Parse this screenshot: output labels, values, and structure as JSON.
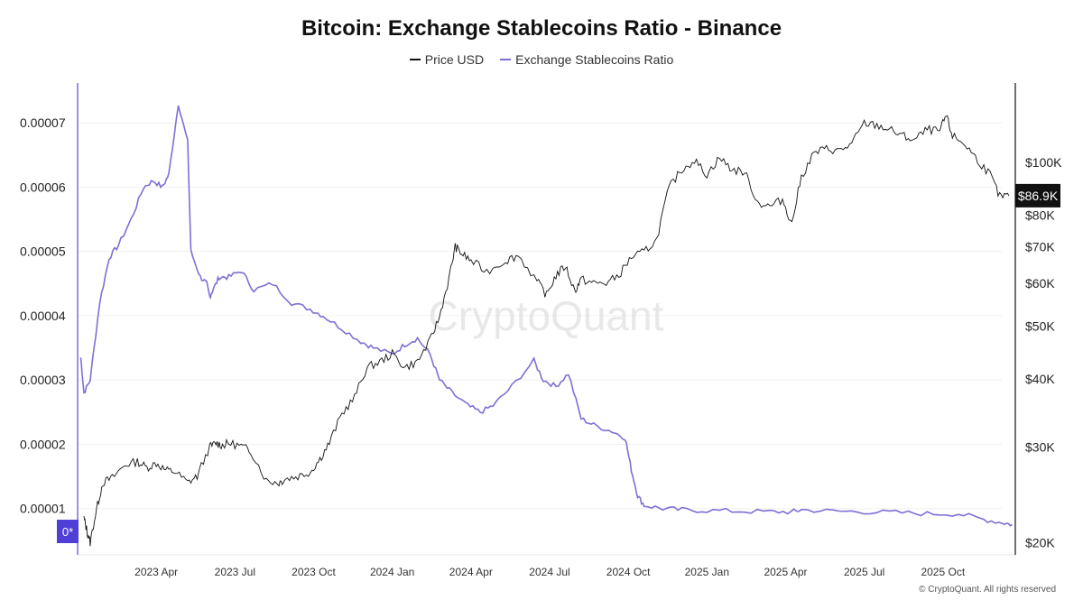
{
  "chart_data": {
    "type": "line",
    "title": "Bitcoin: Exchange Stablecoins Ratio - Binance",
    "watermark": "CryptoQuant",
    "copyright": "© CryptoQuant. All rights reserved",
    "legend": [
      "Price USD",
      "Exchange Stablecoins Ratio"
    ],
    "colors": {
      "price": "#111111",
      "ratio": "#7f6fd6",
      "marker": "#4f3fd6"
    },
    "x_ticks": [
      "2023 Apr",
      "2023 Jul",
      "2023 Oct",
      "2024 Jan",
      "2024 Apr",
      "2024 Jul",
      "2024 Oct",
      "2025 Jan",
      "2025 Apr",
      "2025 Jul",
      "2025 Oct"
    ],
    "x_tick_times": [
      2023.25,
      2023.5,
      2023.75,
      2024.0,
      2024.25,
      2024.5,
      2024.75,
      2025.0,
      2025.25,
      2025.5,
      2025.75
    ],
    "x_range": [
      2023.0,
      2025.98
    ],
    "left_axis": {
      "label": "Exchange Stablecoins Ratio",
      "ticks": [
        "0.00001",
        "0.00002",
        "0.00003",
        "0.00004",
        "0.00005",
        "0.00006",
        "0.00007"
      ],
      "tick_values": [
        1e-05,
        2e-05,
        3e-05,
        4e-05,
        5e-05,
        6e-05,
        7e-05
      ],
      "range": [
        2.8e-06,
        7.62e-05
      ],
      "zero_marker": "0*"
    },
    "right_axis": {
      "label": "Price USD",
      "scale": "log",
      "ticks": [
        "$20K",
        "$30K",
        "$40K",
        "$50K",
        "$60K",
        "$70K",
        "$80K",
        "$100K"
      ],
      "tick_values": [
        20000,
        30000,
        40000,
        50000,
        60000,
        70000,
        80000,
        100000
      ],
      "range": [
        19000,
        140000
      ],
      "last_value_label": "$86.9K",
      "last_value": 86900
    },
    "series": [
      {
        "name": "Price USD",
        "axis": "right",
        "x": [
          2023.02,
          2023.03,
          2023.04,
          2023.06,
          2023.08,
          2023.11,
          2023.15,
          2023.19,
          2023.22,
          2023.25,
          2023.28,
          2023.31,
          2023.35,
          2023.38,
          2023.42,
          2023.44,
          2023.46,
          2023.48,
          2023.52,
          2023.55,
          2023.6,
          2023.64,
          2023.66,
          2023.7,
          2023.74,
          2023.77,
          2023.8,
          2023.84,
          2023.88,
          2023.92,
          2023.96,
          2024.0,
          2024.04,
          2024.08,
          2024.12,
          2024.15,
          2024.18,
          2024.2,
          2024.22,
          2024.25,
          2024.3,
          2024.36,
          2024.4,
          2024.46,
          2024.49,
          2024.52,
          2024.55,
          2024.58,
          2024.6,
          2024.64,
          2024.68,
          2024.72,
          2024.76,
          2024.8,
          2024.84,
          2024.88,
          2024.92,
          2024.96,
          2025.0,
          2025.04,
          2025.08,
          2025.12,
          2025.16,
          2025.2,
          2025.24,
          2025.27,
          2025.3,
          2025.34,
          2025.38,
          2025.42,
          2025.46,
          2025.5,
          2025.54,
          2025.58,
          2025.62,
          2025.66,
          2025.7,
          2025.74,
          2025.76,
          2025.78,
          2025.82,
          2025.86,
          2025.9,
          2025.93,
          2025.96
        ],
        "values": [
          22200,
          21000,
          20000,
          23000,
          25800,
          26300,
          27800,
          28200,
          27500,
          28000,
          27200,
          27000,
          25800,
          26500,
          30000,
          30500,
          30200,
          30500,
          30100,
          29500,
          26000,
          25800,
          26200,
          26500,
          27000,
          28500,
          30500,
          34500,
          37000,
          42000,
          43000,
          44500,
          42000,
          43000,
          47000,
          52000,
          61000,
          70000,
          68000,
          66000,
          63000,
          66000,
          67500,
          60500,
          57000,
          62000,
          64500,
          58000,
          61000,
          60000,
          60000,
          62000,
          67000,
          68500,
          72000,
          90000,
          97000,
          101000,
          95000,
          102000,
          97000,
          96000,
          84500,
          83000,
          85500,
          77000,
          94000,
          104000,
          106000,
          105000,
          108000,
          118000,
          117000,
          115000,
          112000,
          110000,
          115000,
          114000,
          122000,
          112000,
          108000,
          101000,
          95000,
          86500,
          86900
        ]
      },
      {
        "name": "Exchange Stablecoins Ratio",
        "axis": "left",
        "x": [
          2023.01,
          2023.02,
          2023.04,
          2023.07,
          2023.1,
          2023.13,
          2023.17,
          2023.21,
          2023.24,
          2023.27,
          2023.29,
          2023.32,
          2023.35,
          2023.36,
          2023.39,
          2023.41,
          2023.42,
          2023.43,
          2023.45,
          2023.48,
          2023.52,
          2023.56,
          2023.62,
          2023.68,
          2023.74,
          2023.78,
          2023.84,
          2023.9,
          2023.94,
          2024.0,
          2024.04,
          2024.08,
          2024.12,
          2024.15,
          2024.19,
          2024.24,
          2024.28,
          2024.32,
          2024.38,
          2024.45,
          2024.48,
          2024.52,
          2024.56,
          2024.6,
          2024.64,
          2024.7,
          2024.74,
          2024.76,
          2024.78,
          2024.8,
          2024.86,
          2024.92,
          2025.0,
          2025.1,
          2025.2,
          2025.27,
          2025.3,
          2025.4,
          2025.5,
          2025.6,
          2025.7,
          2025.8,
          2025.88,
          2025.94,
          2025.97
        ],
        "values": [
          3.35e-05,
          2.8e-05,
          3e-05,
          4.2e-05,
          4.9e-05,
          5.1e-05,
          5.5e-05,
          6e-05,
          6.1e-05,
          6e-05,
          6.2e-05,
          7.3e-05,
          6.7e-05,
          5e-05,
          4.6e-05,
          4.5e-05,
          4.3e-05,
          4.4e-05,
          4.6e-05,
          4.6e-05,
          4.7e-05,
          4.4e-05,
          4.5e-05,
          4.2e-05,
          4.1e-05,
          4e-05,
          3.8e-05,
          3.6e-05,
          3.5e-05,
          3.4e-05,
          3.55e-05,
          3.65e-05,
          3.4e-05,
          3e-05,
          2.8e-05,
          2.6e-05,
          2.5e-05,
          2.6e-05,
          2.9e-05,
          3.3e-05,
          3e-05,
          2.9e-05,
          3.1e-05,
          2.4e-05,
          2.3e-05,
          2.2e-05,
          2.1e-05,
          1.6e-05,
          1.2e-05,
          1.05e-05,
          1e-05,
          9.8e-06,
          9.7e-06,
          9.6e-06,
          9.5e-06,
          9.5e-06,
          9.8e-06,
          9.6e-06,
          9.5e-06,
          9.4e-06,
          9.2e-06,
          9.2e-06,
          8.3e-06,
          7.8e-06,
          7.5e-06
        ]
      }
    ],
    "grid": true
  }
}
